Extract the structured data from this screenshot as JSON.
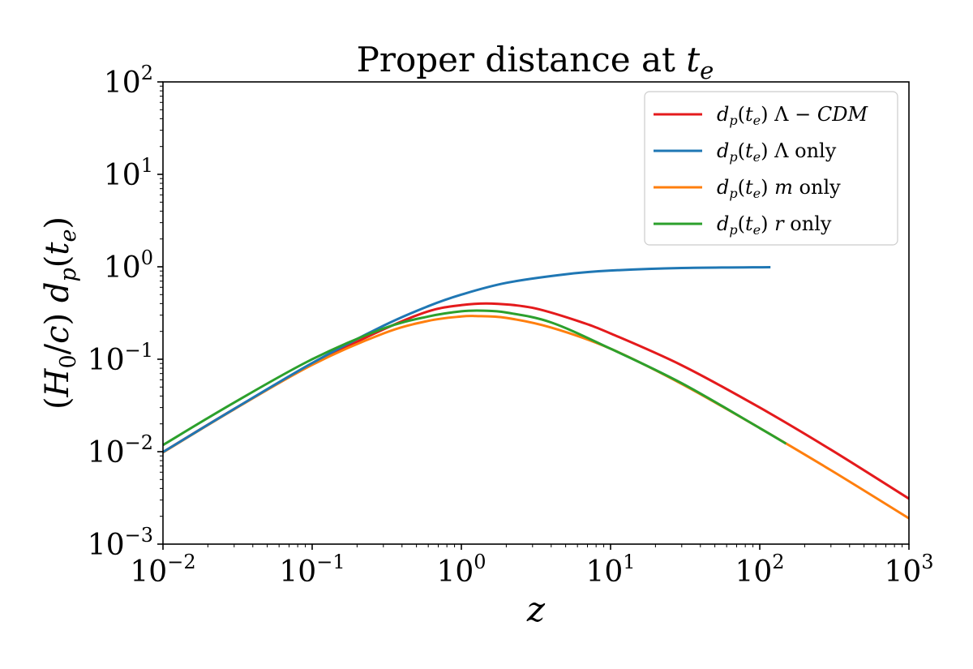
{
  "chart_data": {
    "type": "line",
    "title": "Proper distance at t_e",
    "xlabel": "z",
    "ylabel": "(H_0/c) d_p(t_e)",
    "xscale": "log",
    "yscale": "log",
    "xlim": [
      0.01,
      1000
    ],
    "ylim": [
      0.001,
      100
    ],
    "x_ticks": [
      {
        "base": "10",
        "exp": "−2"
      },
      {
        "base": "10",
        "exp": "−1"
      },
      {
        "base": "10",
        "exp": "0"
      },
      {
        "base": "10",
        "exp": "1"
      },
      {
        "base": "10",
        "exp": "2"
      },
      {
        "base": "10",
        "exp": "3"
      }
    ],
    "y_ticks": [
      {
        "base": "10",
        "exp": "−3"
      },
      {
        "base": "10",
        "exp": "−2"
      },
      {
        "base": "10",
        "exp": "−1"
      },
      {
        "base": "10",
        "exp": "0"
      },
      {
        "base": "10",
        "exp": "1"
      },
      {
        "base": "10",
        "exp": "2"
      }
    ],
    "grid": false,
    "legend_position": "top-right",
    "series": [
      {
        "name": "d_p(t_e) Λ − CDM",
        "color": "#e41a1c",
        "x": [
          0.01,
          0.03,
          0.1,
          0.3,
          0.6,
          1.0,
          1.6,
          3.0,
          6.0,
          10,
          30,
          100,
          300,
          1000
        ],
        "y": [
          0.0099,
          0.029,
          0.088,
          0.21,
          0.33,
          0.385,
          0.4,
          0.36,
          0.26,
          0.19,
          0.086,
          0.03,
          0.0105,
          0.0031
        ]
      },
      {
        "name": "d_p(t_e) Λ only",
        "color": "#1f77b4",
        "x": [
          0.01,
          0.03,
          0.1,
          0.3,
          0.6,
          1.0,
          2.0,
          5.0,
          10,
          30,
          118
        ],
        "y": [
          0.0099,
          0.029,
          0.091,
          0.23,
          0.375,
          0.5,
          0.67,
          0.83,
          0.91,
          0.97,
          0.99
        ]
      },
      {
        "name": "d_p(t_e) m only",
        "color": "#ff7f0e",
        "x": [
          0.01,
          0.03,
          0.1,
          0.3,
          0.6,
          1.0,
          1.25,
          2.0,
          4.0,
          10,
          30,
          100,
          300,
          1000
        ],
        "y": [
          0.0098,
          0.0287,
          0.087,
          0.19,
          0.26,
          0.29,
          0.293,
          0.28,
          0.22,
          0.13,
          0.054,
          0.018,
          0.0063,
          0.0019
        ]
      },
      {
        "name": "d_p(t_e) r only",
        "color": "#2ca02c",
        "x": [
          0.01,
          0.03,
          0.1,
          0.3,
          0.6,
          1.0,
          1.4,
          2.0,
          4.0,
          10,
          30,
          100,
          150
        ],
        "y": [
          0.0118,
          0.034,
          0.1,
          0.215,
          0.29,
          0.33,
          0.335,
          0.32,
          0.25,
          0.13,
          0.055,
          0.018,
          0.0122
        ]
      }
    ]
  }
}
